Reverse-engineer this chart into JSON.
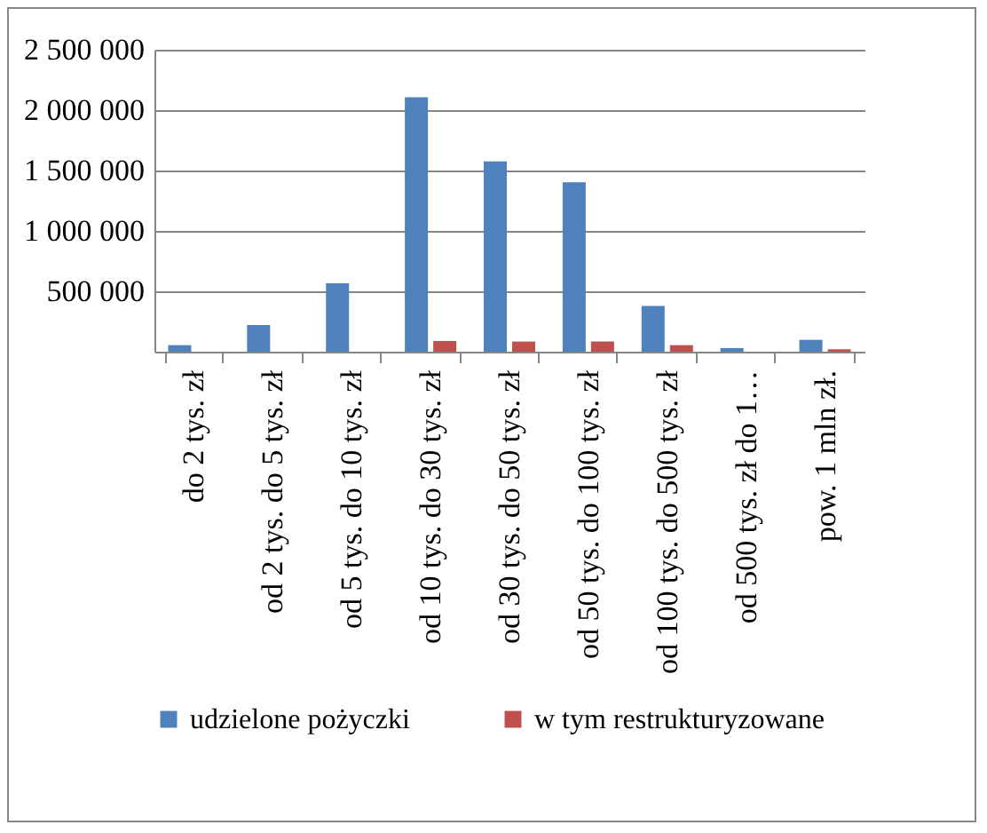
{
  "chart_data": {
    "type": "bar",
    "categories": [
      "do 2 tys. zł",
      "od 2 tys. do 5 tys. zł",
      "od 5 tys. do 10 tys. zł",
      "od 10 tys. do 30 tys. zł",
      "od 30 tys. do 50 tys. zł",
      "od 50 tys. do 100 tys. zł",
      "od 100 tys. do 500 tys. zł",
      "od 500 tys. zł do 1…",
      "pow. 1 mln zł."
    ],
    "series": [
      {
        "name": "udzielone pożyczki",
        "color": "#4f81bd",
        "values": [
          54000,
          221000,
          566000,
          2106000,
          1575000,
          1403000,
          379000,
          30000,
          98000
        ]
      },
      {
        "name": "w tym restrukturyzowane",
        "color": "#c0504d",
        "values": [
          0,
          0,
          0,
          89000,
          84000,
          84000,
          54000,
          0,
          20000
        ]
      }
    ],
    "ylim": [
      0,
      2500000
    ],
    "yticks": [
      {
        "value": 0,
        "label": null
      },
      {
        "value": 500000,
        "label": "500 000"
      },
      {
        "value": 1000000,
        "label": "1 000 000"
      },
      {
        "value": 1500000,
        "label": "1 500 000"
      },
      {
        "value": 2000000,
        "label": "2 000 000"
      },
      {
        "value": 2500000,
        "label": "2 500 000"
      }
    ],
    "grid": "y",
    "legend": "bottom"
  }
}
